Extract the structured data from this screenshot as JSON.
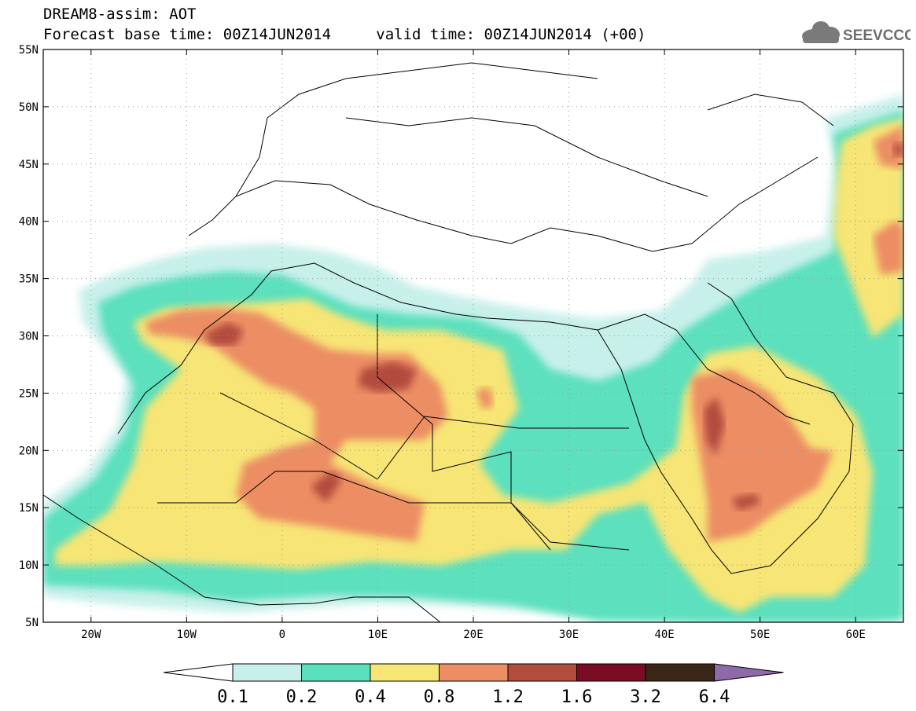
{
  "header": {
    "title_line1": "DREAM8-assim: AOT",
    "forecast_label": "Forecast base time: 00Z14JUN2014",
    "valid_label": "valid time: 00Z14JUN2014 (+00)",
    "logo_text": "SEEVCCC",
    "logo_icon": "cloud-icon"
  },
  "map": {
    "lon_range": [
      -25,
      65
    ],
    "lat_range": [
      5,
      55
    ],
    "lon_ticks": [
      {
        "value": -20,
        "label": "20W"
      },
      {
        "value": -10,
        "label": "10W"
      },
      {
        "value": 0,
        "label": "0"
      },
      {
        "value": 10,
        "label": "10E"
      },
      {
        "value": 20,
        "label": "20E"
      },
      {
        "value": 30,
        "label": "30E"
      },
      {
        "value": 40,
        "label": "40E"
      },
      {
        "value": 50,
        "label": "50E"
      },
      {
        "value": 60,
        "label": "60E"
      }
    ],
    "lat_ticks": [
      {
        "value": 5,
        "label": "5N"
      },
      {
        "value": 10,
        "label": "10N"
      },
      {
        "value": 15,
        "label": "15N"
      },
      {
        "value": 20,
        "label": "20N"
      },
      {
        "value": 25,
        "label": "25N"
      },
      {
        "value": 30,
        "label": "30N"
      },
      {
        "value": 35,
        "label": "35N"
      },
      {
        "value": 40,
        "label": "40N"
      },
      {
        "value": 45,
        "label": "45N"
      },
      {
        "value": 50,
        "label": "50N"
      },
      {
        "value": 55,
        "label": "55N"
      }
    ],
    "grid": "dotted"
  },
  "colorbar": {
    "levels": [
      "0.1",
      "0.2",
      "0.4",
      "0.8",
      "1.2",
      "1.6",
      "3.2",
      "6.4"
    ],
    "colors": [
      "#ffffff",
      "#c8f0ea",
      "#5be0bd",
      "#f7e574",
      "#ec8d63",
      "#b24c3c",
      "#7a0d23",
      "#3a2616",
      "#8e6aa8"
    ]
  }
}
